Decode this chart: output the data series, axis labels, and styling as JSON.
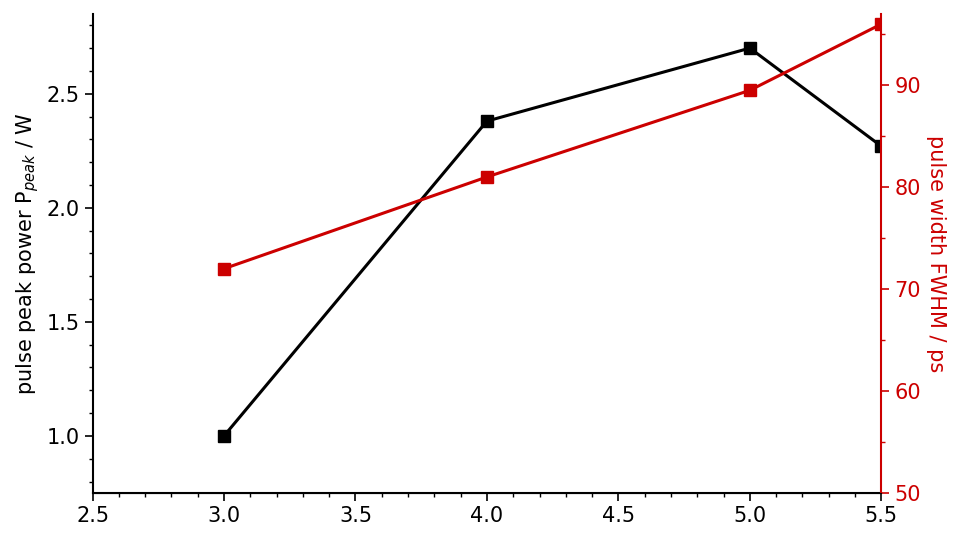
{
  "black_x": [
    3.0,
    4.0,
    5.0,
    5.5
  ],
  "black_y": [
    1.0,
    2.38,
    2.7,
    2.27
  ],
  "red_x": [
    3.0,
    4.0,
    5.0,
    5.5
  ],
  "red_y": [
    72,
    81,
    89.5,
    96
  ],
  "xlim": [
    2.5,
    5.5
  ],
  "ylim_left": [
    0.75,
    2.85
  ],
  "ylim_right": [
    50,
    97
  ],
  "yticks_left": [
    1.0,
    1.5,
    2.0,
    2.5
  ],
  "yticks_right": [
    50,
    60,
    70,
    80,
    90
  ],
  "xticks": [
    2.5,
    3.0,
    3.5,
    4.0,
    4.5,
    5.0,
    5.5
  ],
  "ylabel_left": "pulse peak power P$_{peak}$ / W",
  "ylabel_right": "pulse width FWHM / ps",
  "black_color": "#000000",
  "red_color": "#cc0000",
  "marker": "s",
  "markersize": 9,
  "linewidth": 2.2,
  "figsize": [
    9.6,
    5.4
  ],
  "dpi": 100,
  "font_size": 15
}
